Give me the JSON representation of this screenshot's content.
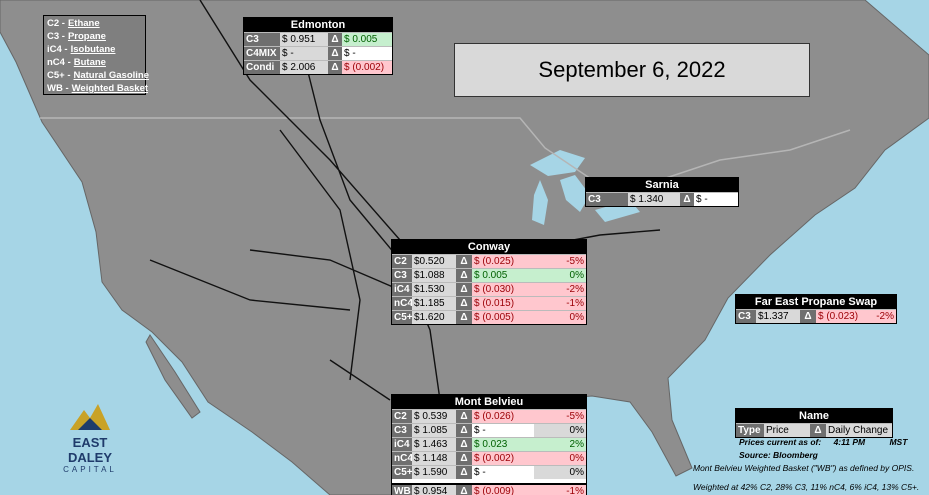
{
  "date": "September 6, 2022",
  "legend": [
    {
      "code": "C2 -",
      "name": "Ethane"
    },
    {
      "code": "C3 -",
      "name": "Propane"
    },
    {
      "code": "iC4 -",
      "name": "Isobutane"
    },
    {
      "code": "nC4 -",
      "name": "Butane"
    },
    {
      "code": "C5+ -",
      "name": "Natural Gasoline"
    },
    {
      "code": "WB -",
      "name": "Weighted Basket"
    }
  ],
  "tables": {
    "edmonton": {
      "title": "Edmonton",
      "rows": [
        {
          "cells": [
            "C3",
            "$ 0.951",
            "Δ",
            "$ 0.005"
          ],
          "trend": "up"
        },
        {
          "cells": [
            "C4MIX",
            "$ -",
            "Δ",
            "$ -"
          ],
          "trend": "flat"
        },
        {
          "cells": [
            "Condi",
            "$ 2.006",
            "Δ",
            "$ (0.002)"
          ],
          "trend": "down"
        }
      ]
    },
    "sarnia": {
      "title": "Sarnia",
      "rows": [
        {
          "cells": [
            "C3",
            "$ 1.340",
            "Δ",
            "$ -"
          ],
          "trend": "flat"
        }
      ]
    },
    "conway": {
      "title": "Conway",
      "rows": [
        {
          "cells": [
            "C2",
            "$0.520",
            "Δ",
            "$ (0.025)",
            "-5%"
          ],
          "trend": "down"
        },
        {
          "cells": [
            "C3",
            "$1.088",
            "Δ",
            "$ 0.005",
            "0%"
          ],
          "trend": "up"
        },
        {
          "cells": [
            "iC4",
            "$1.530",
            "Δ",
            "$ (0.030)",
            "-2%"
          ],
          "trend": "down"
        },
        {
          "cells": [
            "nC4",
            "$1.185",
            "Δ",
            "$ (0.015)",
            "-1%"
          ],
          "trend": "down"
        },
        {
          "cells": [
            "C5+",
            "$1.620",
            "Δ",
            "$ (0.005)",
            "0%"
          ],
          "trend": "down"
        }
      ]
    },
    "far_east": {
      "title": "Far East Propane Swap",
      "rows": [
        {
          "cells": [
            "C3",
            "$1.337",
            "Δ",
            "$ (0.023)",
            "-2%"
          ],
          "trend": "down"
        }
      ]
    },
    "mont_belvieu": {
      "title": "Mont Belvieu",
      "rows": [
        {
          "cells": [
            "C2",
            "$ 0.539",
            "Δ",
            "$ (0.026)",
            "-5%"
          ],
          "trend": "down"
        },
        {
          "cells": [
            "C3",
            "$ 1.085",
            "Δ",
            "$ -",
            "0%"
          ],
          "trend": "flat"
        },
        {
          "cells": [
            "iC4",
            "$ 1.463",
            "Δ",
            "$ 0.023",
            "2%"
          ],
          "trend": "up"
        },
        {
          "cells": [
            "nC4",
            "$ 1.148",
            "Δ",
            "$ (0.002)",
            "0%"
          ],
          "trend": "down"
        },
        {
          "cells": [
            "C5+",
            "$ 1.590",
            "Δ",
            "$ -",
            "0%"
          ],
          "trend": "flat"
        },
        {
          "cells": [
            "WB",
            "$ 0.954",
            "Δ",
            "$ (0.009)",
            "-1%"
          ],
          "trend": "down"
        }
      ]
    },
    "key": {
      "title": "Name",
      "rows": [
        {
          "cells": [
            "Type",
            "Price",
            "Δ",
            "Daily Change"
          ]
        }
      ]
    }
  },
  "notes": {
    "prices_label": "Prices current as of:",
    "time": "4:11 PM",
    "zone": "MST",
    "source": "Source: Bloomberg",
    "basket": "Mont Belvieu Weighted Basket (\"WB\") as defined by OPIS.",
    "weights": "Weighted at 42% C2, 28% C3, 11% nC4, 6% iC4, 13% C5+."
  },
  "logo": {
    "name": "EAST DALEY",
    "sub": "CAPITAL"
  }
}
